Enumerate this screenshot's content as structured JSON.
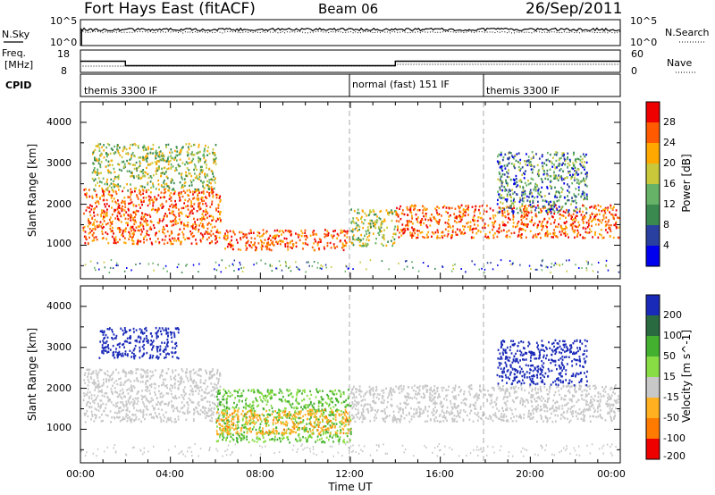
{
  "header": {
    "station": "Fort Hays East (fitACF)",
    "beam": "Beam 06",
    "date": "26/Sep/2011"
  },
  "noise_panel": {
    "left_label": "N.Sky",
    "right_label": "N.Search",
    "left_ticks": [
      "10^5",
      "10^0"
    ],
    "right_ticks": [
      "10^5",
      "10^0"
    ]
  },
  "freq_panel": {
    "label_line1": "Freq.",
    "label_line2": "[MHz]",
    "right_label": "Nave",
    "left_ticks": [
      "18",
      "8"
    ],
    "right_ticks": [
      "60",
      "0"
    ]
  },
  "cpid_panel": {
    "label": "CPID",
    "segments": [
      {
        "label": "themis 3300 IF",
        "start_hour": 0
      },
      {
        "label": "normal (fast) 151 IF",
        "start_hour": 12
      },
      {
        "label": "themis 3300 IF",
        "start_hour": 18
      }
    ]
  },
  "power_panel": {
    "ylabel": "Slant Range [km]",
    "yticks": [
      "4000",
      "3000",
      "2000",
      "1000"
    ],
    "colorbar_label": "Power [dB]",
    "colorbar_ticks": [
      "28",
      "24",
      "20",
      "16",
      "12",
      "8",
      "4"
    ],
    "colors": [
      "#0000ee",
      "#2a40a0",
      "#3a8a50",
      "#66b266",
      "#c8c83a",
      "#ffa800",
      "#ff5a00",
      "#ee0000"
    ]
  },
  "velocity_panel": {
    "ylabel": "Slant Range [km]",
    "yticks": [
      "4000",
      "3000",
      "2000",
      "1000"
    ],
    "colorbar_label": "Velocity [m s^-1]",
    "colorbar_ticks": [
      "200",
      "100",
      "50",
      "15",
      "-15",
      "-50",
      "-100",
      "-200"
    ],
    "colors": [
      "#1a2ab8",
      "#2a6a40",
      "#44b030",
      "#88dd44",
      "#c8c8c8",
      "#ffb020",
      "#ff7a00",
      "#ee0000"
    ]
  },
  "x_axis": {
    "label": "Time UT",
    "ticks": [
      "00:00",
      "04:00",
      "08:00",
      "12:00",
      "16:00",
      "20:00",
      "00:00"
    ]
  },
  "chart_data": {
    "type": "heatmap",
    "title": "Fort Hays East (fitACF)  Beam 06  26/Sep/2011",
    "xlabel": "Time UT",
    "ylabel": "Slant Range [km]",
    "xlim_hours": [
      0,
      24
    ],
    "ylim_km": [
      180,
      4500
    ],
    "frequency_steps": [
      {
        "start_hour": 0,
        "end_hour": 2,
        "value": 13
      },
      {
        "start_hour": 2,
        "end_hour": 14,
        "value": 11
      },
      {
        "start_hour": 14,
        "end_hour": 24,
        "value": 13
      }
    ],
    "cpid_change_hours": [
      12,
      18
    ],
    "power_features": [
      {
        "t0": 0.1,
        "t1": 6.2,
        "r0": 1050,
        "r1": 2400,
        "level": "high"
      },
      {
        "t0": 0.5,
        "t1": 6.0,
        "r0": 2350,
        "r1": 3500,
        "level": "medium"
      },
      {
        "t0": 6.3,
        "t1": 12.0,
        "r0": 900,
        "r1": 1400,
        "level": "high"
      },
      {
        "t0": 12.0,
        "t1": 14.0,
        "r0": 1000,
        "r1": 1900,
        "level": "medium"
      },
      {
        "t0": 14.0,
        "t1": 24.0,
        "r0": 1200,
        "r1": 2000,
        "level": "high"
      },
      {
        "t0": 18.5,
        "t1": 22.5,
        "r0": 1800,
        "r1": 3300,
        "level": "low"
      }
    ],
    "velocity_features": [
      {
        "t0": 0.8,
        "t1": 4.4,
        "r0": 2750,
        "r1": 3500,
        "velocity": 200
      },
      {
        "t0": 0.1,
        "t1": 6.2,
        "r0": 1200,
        "r1": 2500,
        "velocity": 0
      },
      {
        "t0": 6.0,
        "t1": 12.0,
        "r0": 700,
        "r1": 2000,
        "velocity": 30
      },
      {
        "t0": 6.0,
        "t1": 12.0,
        "r0": 900,
        "r1": 1500,
        "velocity": -40
      },
      {
        "t0": 12.0,
        "t1": 24.0,
        "r0": 1200,
        "r1": 2100,
        "velocity": 0
      },
      {
        "t0": 18.5,
        "t1": 22.5,
        "r0": 2100,
        "r1": 3200,
        "velocity": 200
      }
    ]
  }
}
